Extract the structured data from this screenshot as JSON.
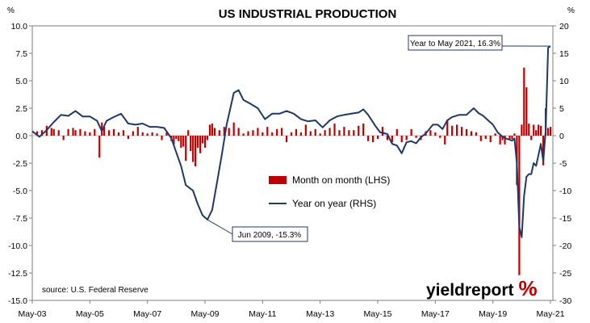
{
  "chart_data": {
    "type": "bar+line",
    "title": "US INDUSTRIAL PRODUCTION",
    "left_unit": "%",
    "right_unit": "%",
    "x_tick_labels": [
      "May-03",
      "May-05",
      "May-07",
      "May-09",
      "May-11",
      "May-13",
      "May-15",
      "May-17",
      "May-19",
      "May-21"
    ],
    "x_range": [
      "2003-05",
      "2021-06"
    ],
    "ylim_left": [
      -15.0,
      10.0
    ],
    "ylim_right": [
      -30,
      20
    ],
    "y_left_ticks": [
      "10.0",
      "7.5",
      "5.0",
      "2.5",
      "0.0",
      "-2.5",
      "-5.0",
      "-7.5",
      "-10.0",
      "-12.5",
      "-15.0"
    ],
    "y_right_ticks": [
      "20",
      "15",
      "10",
      "5",
      "0",
      "-5",
      "-10",
      "-15",
      "-20",
      "-25",
      "-30"
    ],
    "grid": false,
    "legend_placement": "center",
    "series": [
      {
        "name": "Month on month (LHS)",
        "kind": "bar",
        "axis": "left",
        "color": "#c00000",
        "points": [
          [
            "2003-07",
            0.4
          ],
          [
            "2003-09",
            0.5
          ],
          [
            "2003-11",
            0.9
          ],
          [
            "2004-01",
            0.7
          ],
          [
            "2004-02",
            0.6
          ],
          [
            "2004-04",
            0.5
          ],
          [
            "2004-06",
            -0.4
          ],
          [
            "2004-08",
            0.6
          ],
          [
            "2004-10",
            0.7
          ],
          [
            "2004-11",
            0.5
          ],
          [
            "2005-01",
            0.6
          ],
          [
            "2005-03",
            0.4
          ],
          [
            "2005-05",
            0.3
          ],
          [
            "2005-07",
            0.6
          ],
          [
            "2005-09",
            -2.0
          ],
          [
            "2005-10",
            1.2
          ],
          [
            "2005-11",
            0.8
          ],
          [
            "2006-01",
            0.5
          ],
          [
            "2006-03",
            0.6
          ],
          [
            "2006-05",
            0.3
          ],
          [
            "2006-07",
            0.5
          ],
          [
            "2006-09",
            -0.3
          ],
          [
            "2006-11",
            0.4
          ],
          [
            "2007-01",
            0.8
          ],
          [
            "2007-03",
            0.3
          ],
          [
            "2007-05",
            0.2
          ],
          [
            "2007-07",
            0.3
          ],
          [
            "2007-09",
            0.2
          ],
          [
            "2007-11",
            -0.4
          ],
          [
            "2008-01",
            0.3
          ],
          [
            "2008-03",
            -0.5
          ],
          [
            "2008-04",
            -0.8
          ],
          [
            "2008-05",
            -0.3
          ],
          [
            "2008-06",
            -0.5
          ],
          [
            "2008-07",
            -1.1
          ],
          [
            "2008-08",
            -1.0
          ],
          [
            "2008-09",
            -2.3
          ],
          [
            "2008-10",
            0.5
          ],
          [
            "2008-11",
            -1.4
          ],
          [
            "2008-12",
            -2.4
          ],
          [
            "2009-01",
            -2.8
          ],
          [
            "2009-02",
            -1.1
          ],
          [
            "2009-03",
            -1.6
          ],
          [
            "2009-04",
            -0.7
          ],
          [
            "2009-05",
            -1.1
          ],
          [
            "2009-06",
            -0.4
          ],
          [
            "2009-07",
            1.0
          ],
          [
            "2009-08",
            1.1
          ],
          [
            "2009-09",
            0.7
          ],
          [
            "2009-11",
            0.5
          ],
          [
            "2010-01",
            0.8
          ],
          [
            "2010-03",
            0.7
          ],
          [
            "2010-05",
            1.2
          ],
          [
            "2010-07",
            0.7
          ],
          [
            "2010-09",
            0.2
          ],
          [
            "2010-11",
            0.4
          ],
          [
            "2011-01",
            0.5
          ],
          [
            "2011-03",
            0.7
          ],
          [
            "2011-05",
            0.3
          ],
          [
            "2011-07",
            0.8
          ],
          [
            "2011-09",
            0.3
          ],
          [
            "2011-11",
            0.6
          ],
          [
            "2012-01",
            0.7
          ],
          [
            "2012-03",
            -0.6
          ],
          [
            "2012-05",
            0.3
          ],
          [
            "2012-07",
            0.6
          ],
          [
            "2012-09",
            0.3
          ],
          [
            "2012-11",
            1.0
          ],
          [
            "2013-01",
            0.4
          ],
          [
            "2013-03",
            0.6
          ],
          [
            "2013-05",
            0.2
          ],
          [
            "2013-07",
            0.5
          ],
          [
            "2013-09",
            0.7
          ],
          [
            "2013-11",
            1.1
          ],
          [
            "2014-01",
            0.5
          ],
          [
            "2014-03",
            0.8
          ],
          [
            "2014-05",
            0.5
          ],
          [
            "2014-07",
            0.5
          ],
          [
            "2014-09",
            0.9
          ],
          [
            "2014-11",
            1.1
          ],
          [
            "2015-01",
            -0.5
          ],
          [
            "2015-03",
            -0.6
          ],
          [
            "2015-05",
            -0.3
          ],
          [
            "2015-07",
            0.8
          ],
          [
            "2015-09",
            -0.4
          ],
          [
            "2015-11",
            -0.6
          ],
          [
            "2016-01",
            0.6
          ],
          [
            "2016-03",
            -0.6
          ],
          [
            "2016-05",
            -0.4
          ],
          [
            "2016-07",
            0.6
          ],
          [
            "2016-09",
            -0.2
          ],
          [
            "2016-11",
            -0.4
          ],
          [
            "2017-01",
            0.4
          ],
          [
            "2017-03",
            0.5
          ],
          [
            "2017-05",
            0.3
          ],
          [
            "2017-07",
            -0.2
          ],
          [
            "2017-09",
            -0.8
          ],
          [
            "2017-10",
            1.4
          ],
          [
            "2017-12",
            0.9
          ],
          [
            "2018-02",
            1.0
          ],
          [
            "2018-04",
            0.8
          ],
          [
            "2018-06",
            0.6
          ],
          [
            "2018-08",
            0.4
          ],
          [
            "2018-10",
            0.3
          ],
          [
            "2018-12",
            -0.5
          ],
          [
            "2019-02",
            -0.3
          ],
          [
            "2019-04",
            -0.6
          ],
          [
            "2019-06",
            0.2
          ],
          [
            "2019-08",
            -0.8
          ],
          [
            "2019-09",
            -0.4
          ],
          [
            "2019-10",
            -0.8
          ],
          [
            "2019-12",
            -0.3
          ],
          [
            "2020-01",
            -0.3
          ],
          [
            "2020-02",
            0.2
          ],
          [
            "2020-03",
            -4.5
          ],
          [
            "2020-04",
            -12.7
          ],
          [
            "2020-05",
            1.0
          ],
          [
            "2020-06",
            6.2
          ],
          [
            "2020-07",
            4.4
          ],
          [
            "2020-08",
            1.1
          ],
          [
            "2020-09",
            -0.4
          ],
          [
            "2020-10",
            1.0
          ],
          [
            "2020-11",
            0.5
          ],
          [
            "2020-12",
            1.0
          ],
          [
            "2021-01",
            0.9
          ],
          [
            "2021-02",
            -2.7
          ],
          [
            "2021-03",
            2.5
          ],
          [
            "2021-04",
            0.7
          ],
          [
            "2021-05",
            0.8
          ]
        ]
      },
      {
        "name": "Year on year (RHS)",
        "kind": "line",
        "axis": "right",
        "color": "#1f3864",
        "points": [
          [
            "2003-05",
            0.8
          ],
          [
            "2003-08",
            -0.2
          ],
          [
            "2003-11",
            1.0
          ],
          [
            "2004-02",
            2.5
          ],
          [
            "2004-05",
            3.8
          ],
          [
            "2004-08",
            3.6
          ],
          [
            "2004-11",
            4.5
          ],
          [
            "2005-02",
            3.5
          ],
          [
            "2005-05",
            3.5
          ],
          [
            "2005-08",
            2.7
          ],
          [
            "2005-10",
            0.8
          ],
          [
            "2005-12",
            2.7
          ],
          [
            "2006-03",
            3.4
          ],
          [
            "2006-06",
            4.0
          ],
          [
            "2006-09",
            2.2
          ],
          [
            "2006-12",
            2.0
          ],
          [
            "2007-03",
            2.2
          ],
          [
            "2007-06",
            1.6
          ],
          [
            "2007-09",
            1.6
          ],
          [
            "2007-12",
            1.4
          ],
          [
            "2008-03",
            -0.5
          ],
          [
            "2008-05",
            -3.0
          ],
          [
            "2008-07",
            -5.5
          ],
          [
            "2008-09",
            -9.0
          ],
          [
            "2008-12",
            -10.0
          ],
          [
            "2009-02",
            -12.5
          ],
          [
            "2009-04",
            -14.5
          ],
          [
            "2009-06",
            -15.3
          ],
          [
            "2009-08",
            -13.5
          ],
          [
            "2009-10",
            -8.5
          ],
          [
            "2009-12",
            -3.5
          ],
          [
            "2010-02",
            2.0
          ],
          [
            "2010-05",
            7.8
          ],
          [
            "2010-07",
            8.3
          ],
          [
            "2010-09",
            6.5
          ],
          [
            "2010-12",
            5.8
          ],
          [
            "2011-03",
            5.0
          ],
          [
            "2011-06",
            3.0
          ],
          [
            "2011-09",
            4.0
          ],
          [
            "2011-12",
            4.0
          ],
          [
            "2012-03",
            4.5
          ],
          [
            "2012-06",
            4.0
          ],
          [
            "2012-09",
            3.0
          ],
          [
            "2012-12",
            2.6
          ],
          [
            "2013-03",
            2.8
          ],
          [
            "2013-06",
            1.5
          ],
          [
            "2013-09",
            2.8
          ],
          [
            "2013-12",
            3.5
          ],
          [
            "2014-03",
            3.8
          ],
          [
            "2014-06",
            4.0
          ],
          [
            "2014-09",
            4.2
          ],
          [
            "2014-11",
            4.8
          ],
          [
            "2015-01",
            3.8
          ],
          [
            "2015-04",
            1.8
          ],
          [
            "2015-06",
            0.6
          ],
          [
            "2015-09",
            0.3
          ],
          [
            "2015-11",
            -1.5
          ],
          [
            "2016-01",
            -1.8
          ],
          [
            "2016-03",
            -3.2
          ],
          [
            "2016-05",
            -1.2
          ],
          [
            "2016-07",
            -1.0
          ],
          [
            "2016-09",
            -1.4
          ],
          [
            "2016-11",
            -0.3
          ],
          [
            "2017-01",
            0.4
          ],
          [
            "2017-04",
            2.0
          ],
          [
            "2017-06",
            2.0
          ],
          [
            "2017-08",
            1.2
          ],
          [
            "2017-10",
            2.8
          ],
          [
            "2017-12",
            3.4
          ],
          [
            "2018-03",
            3.8
          ],
          [
            "2018-06",
            3.8
          ],
          [
            "2018-09",
            5.0
          ],
          [
            "2018-11",
            4.1
          ],
          [
            "2019-01",
            3.6
          ],
          [
            "2019-03",
            2.8
          ],
          [
            "2019-05",
            2.0
          ],
          [
            "2019-07",
            0.6
          ],
          [
            "2019-09",
            -0.2
          ],
          [
            "2019-11",
            -0.6
          ],
          [
            "2020-01",
            -0.9
          ],
          [
            "2020-02",
            -0.5
          ],
          [
            "2020-03",
            -5.0
          ],
          [
            "2020-04",
            -16.6
          ],
          [
            "2020-05",
            -18.5
          ],
          [
            "2020-06",
            -11.0
          ],
          [
            "2020-07",
            -7.5
          ],
          [
            "2020-08",
            -7.0
          ],
          [
            "2020-09",
            -7.0
          ],
          [
            "2020-10",
            -5.0
          ],
          [
            "2020-11",
            -5.5
          ],
          [
            "2020-12",
            -3.5
          ],
          [
            "2021-01",
            -1.5
          ],
          [
            "2021-02",
            -4.7
          ],
          [
            "2021-03",
            1.0
          ],
          [
            "2021-04",
            16.0
          ],
          [
            "2021-05",
            16.3
          ]
        ]
      }
    ],
    "annotations": [
      {
        "text": "Year to May 2021, 16.3%",
        "date": "2021-05",
        "value": 16.3,
        "axis": "right"
      },
      {
        "text": "Jun 2009, -15.3%",
        "date": "2009-06",
        "value": -15.3,
        "axis": "right"
      }
    ],
    "source_note": "source: U.S. Federal Reserve",
    "brand": {
      "main": "yieldreport",
      "symbol": "%"
    }
  }
}
